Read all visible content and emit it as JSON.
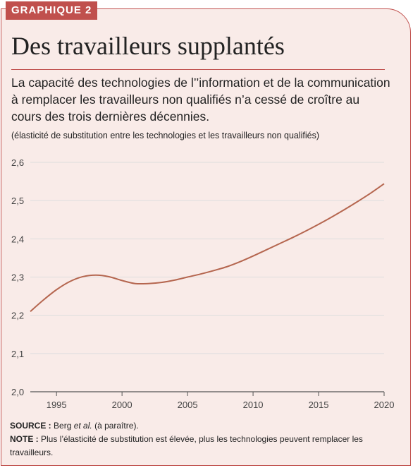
{
  "header": {
    "label": "GRAPHIQUE 2",
    "title": "Des travailleurs supplantés",
    "subtitle": "La capacité des technologies de l’’information et de la communication à remplacer les travailleurs non qualifiés n’a cessé de croître au cours des trois dernières décennies.",
    "unit_note": "(élasticité de substitution entre les technologies et les travailleurs non qualifiés)"
  },
  "footer": {
    "source_label": "SOURCE :",
    "source_text_before": "Berg",
    "source_text_italic": "et al.",
    "source_text_after": "(à paraître).",
    "note_label": "NOTE :",
    "note_text": "Plus l’élasticité de substitution est élevée, plus les technologies peuvent remplacer les travailleurs."
  },
  "colors": {
    "accent": "#c0504d",
    "background": "#f9ebe8",
    "line": "#b5664f",
    "grid": "#dddddd"
  },
  "chart_data": {
    "type": "line",
    "xlabel": "",
    "ylabel": "",
    "xlim": [
      1993,
      2020
    ],
    "ylim": [
      2.0,
      2.6
    ],
    "x_ticks": [
      1995,
      2000,
      2005,
      2010,
      2015,
      2020
    ],
    "y_ticks": [
      2.0,
      2.1,
      2.2,
      2.3,
      2.4,
      2.5,
      2.6
    ],
    "y_tick_labels": [
      "2,0",
      "2,1",
      "2,2",
      "2,3",
      "2,4",
      "2,5",
      "2,6"
    ],
    "grid": "horizontal",
    "series": [
      {
        "x": [
          1993,
          1994,
          1995,
          1996,
          1997,
          1998,
          1999,
          2000,
          2001,
          2002,
          2003,
          2004,
          2005,
          2006,
          2007,
          2008,
          2009,
          2010,
          2011,
          2012,
          2013,
          2014,
          2015,
          2016,
          2017,
          2018,
          2019,
          2020
        ],
        "values": [
          2.21,
          2.24,
          2.267,
          2.288,
          2.301,
          2.305,
          2.301,
          2.291,
          2.283,
          2.283,
          2.286,
          2.292,
          2.3,
          2.308,
          2.317,
          2.327,
          2.34,
          2.355,
          2.371,
          2.387,
          2.403,
          2.42,
          2.438,
          2.457,
          2.477,
          2.498,
          2.52,
          2.544
        ]
      }
    ]
  }
}
